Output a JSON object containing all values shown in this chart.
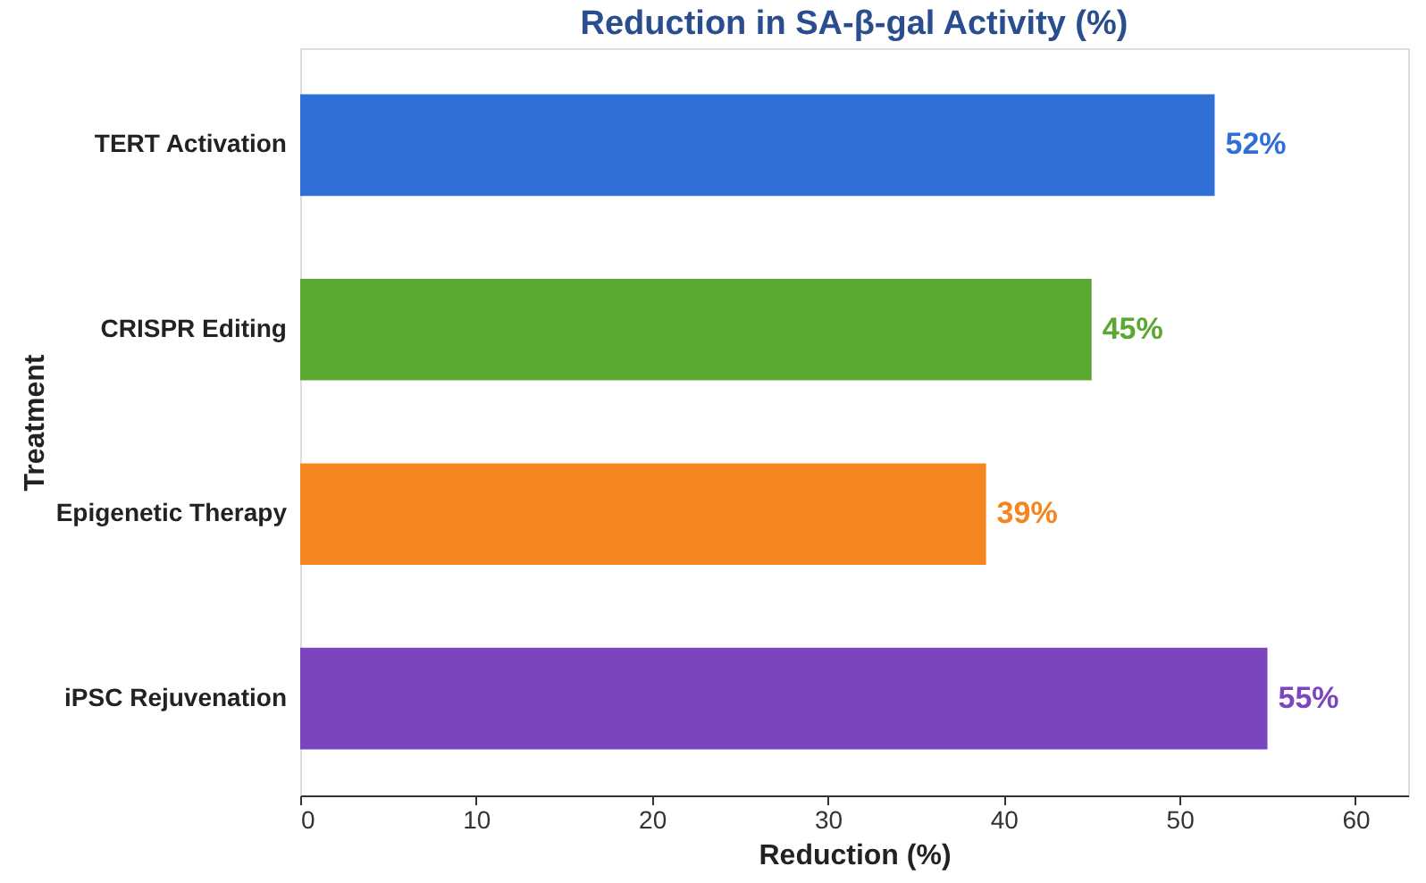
{
  "chart_data": {
    "type": "bar",
    "orientation": "horizontal",
    "title": "Reduction in SA-β-gal Activity (%)",
    "xlabel": "Reduction (%)",
    "ylabel": "Treatment",
    "categories": [
      "TERT Activation",
      "CRISPR Editing",
      "Epigenetic Therapy",
      "iPSC Rejuvenation"
    ],
    "values": [
      52,
      45,
      39,
      55
    ],
    "colors": [
      "#2f6fd6",
      "#5aa832",
      "#f5861f",
      "#7b45c0"
    ],
    "value_labels": [
      "52%",
      "45%",
      "39%",
      "55%"
    ],
    "xlim": [
      0,
      63
    ],
    "xticks": [
      0,
      10,
      20,
      30,
      40,
      50,
      60
    ],
    "grid": false
  }
}
